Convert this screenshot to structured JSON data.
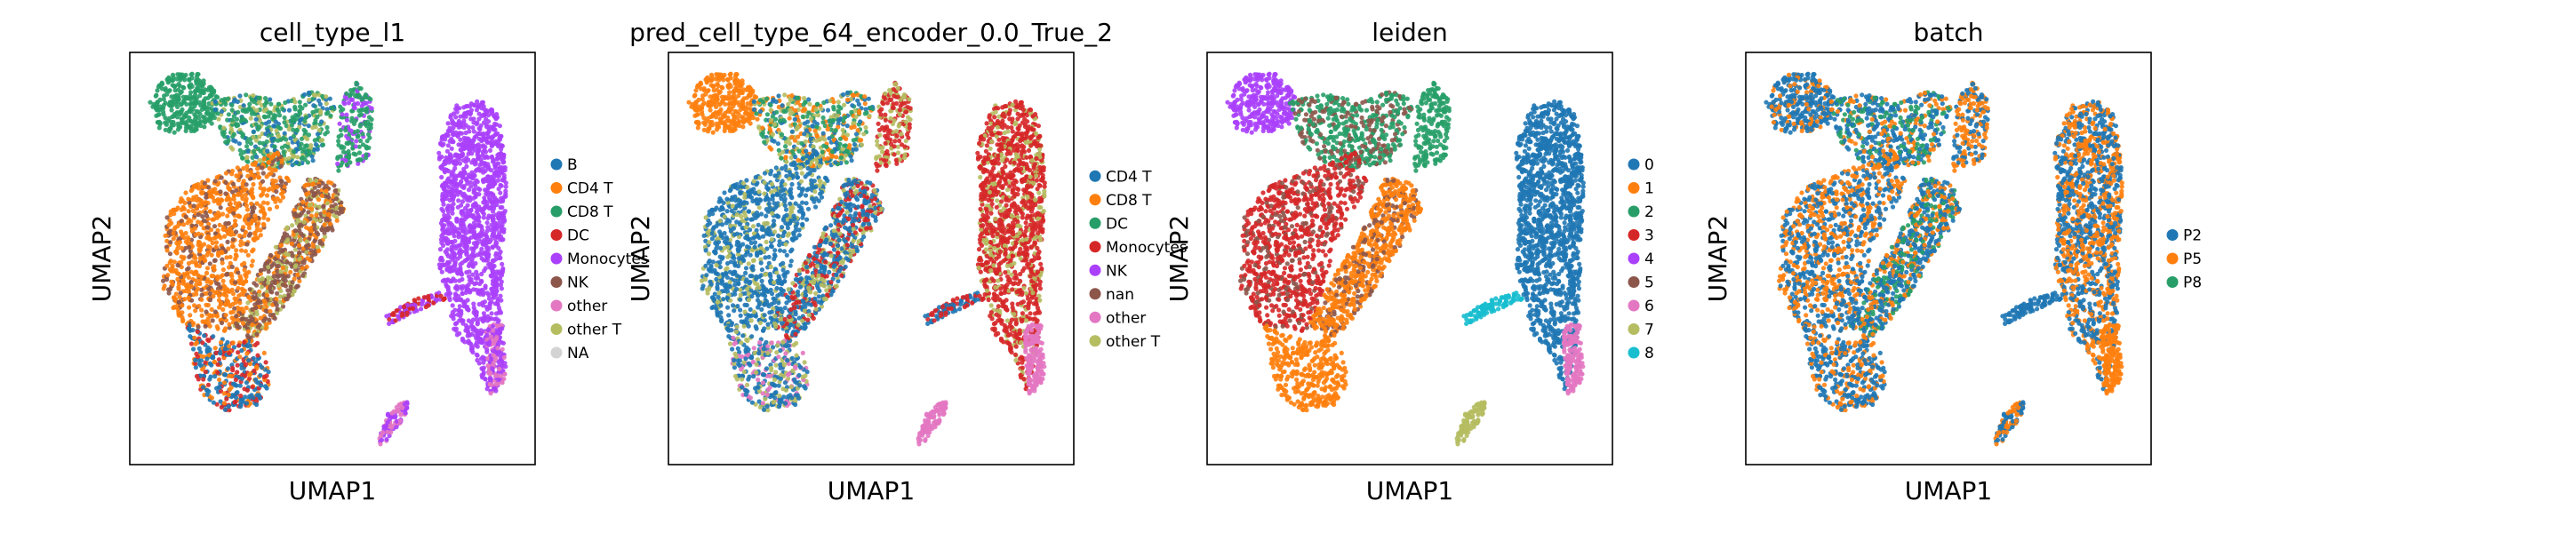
{
  "chart_data": [
    {
      "type": "scatter",
      "title": "cell_type_l1",
      "xlabel": "UMAP1",
      "ylabel": "UMAP2",
      "grid": false,
      "legend_placement": "right",
      "legend": [
        {
          "label": "B",
          "color": "#1f77b4"
        },
        {
          "label": "CD4 T",
          "color": "#ff7f0e"
        },
        {
          "label": "CD8 T",
          "color": "#279e68"
        },
        {
          "label": "DC",
          "color": "#d62728"
        },
        {
          "label": "Monocytes",
          "color": "#aa40fc"
        },
        {
          "label": "NK",
          "color": "#8c564b"
        },
        {
          "label": "other",
          "color": "#e377c2"
        },
        {
          "label": "other T",
          "color": "#b5bd61"
        },
        {
          "label": "NA",
          "color": "#d3d3d3"
        }
      ]
    },
    {
      "type": "scatter",
      "title": "pred_cell_type_64_encoder_0.0_True_2",
      "xlabel": "UMAP1",
      "ylabel": "UMAP2",
      "grid": false,
      "legend_placement": "right",
      "legend": [
        {
          "label": "CD4 T",
          "color": "#1f77b4"
        },
        {
          "label": "CD8 T",
          "color": "#ff7f0e"
        },
        {
          "label": "DC",
          "color": "#279e68"
        },
        {
          "label": "Monocytes",
          "color": "#d62728"
        },
        {
          "label": "NK",
          "color": "#aa40fc"
        },
        {
          "label": "nan",
          "color": "#8c564b"
        },
        {
          "label": "other",
          "color": "#e377c2"
        },
        {
          "label": "other T",
          "color": "#b5bd61"
        }
      ]
    },
    {
      "type": "scatter",
      "title": "leiden",
      "xlabel": "UMAP1",
      "ylabel": "UMAP2",
      "grid": false,
      "legend_placement": "right",
      "legend": [
        {
          "label": "0",
          "color": "#1f77b4"
        },
        {
          "label": "1",
          "color": "#ff7f0e"
        },
        {
          "label": "2",
          "color": "#279e68"
        },
        {
          "label": "3",
          "color": "#d62728"
        },
        {
          "label": "4",
          "color": "#aa40fc"
        },
        {
          "label": "5",
          "color": "#8c564b"
        },
        {
          "label": "6",
          "color": "#e377c2"
        },
        {
          "label": "7",
          "color": "#b5bd61"
        },
        {
          "label": "8",
          "color": "#17becf"
        }
      ]
    },
    {
      "type": "scatter",
      "title": "batch",
      "xlabel": "UMAP1",
      "ylabel": "UMAP2",
      "grid": false,
      "legend_placement": "right",
      "legend": [
        {
          "label": "P2",
          "color": "#1f77b4"
        },
        {
          "label": "P5",
          "color": "#ff7f0e"
        },
        {
          "label": "P8",
          "color": "#279e68"
        }
      ]
    }
  ]
}
